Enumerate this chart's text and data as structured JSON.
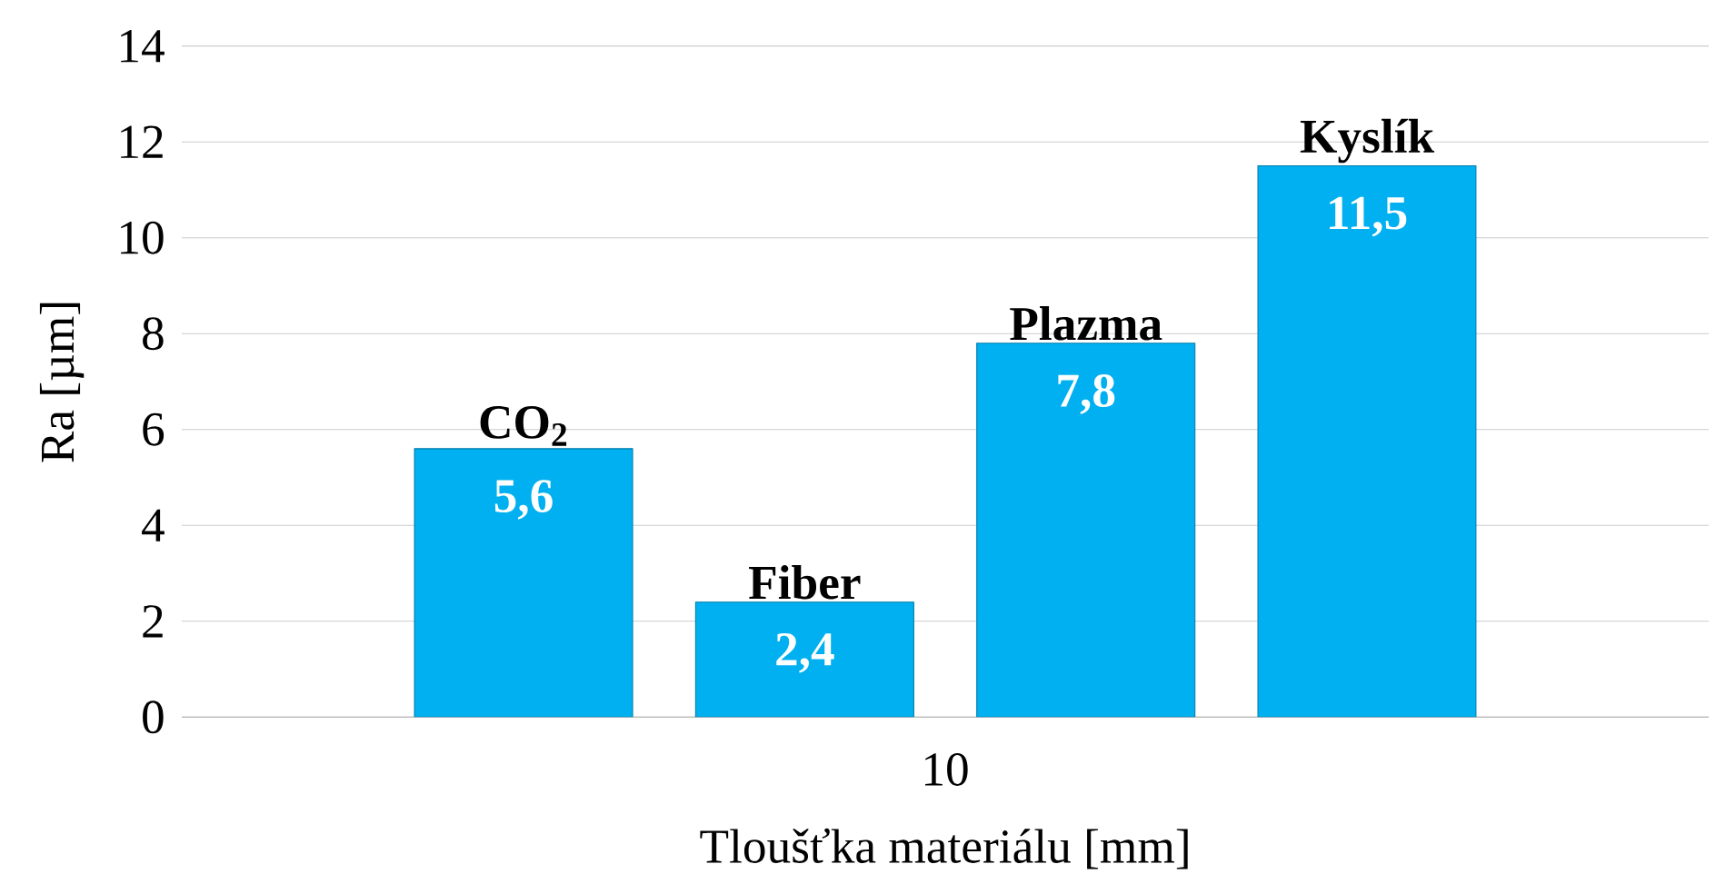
{
  "chart_data": {
    "type": "bar",
    "xlabel": "Tloušťka materiálu [mm]",
    "ylabel": "Ra [µm]",
    "categories": [
      "10"
    ],
    "series": [
      {
        "name": "CO$_{2}$",
        "color": "#00b0f0",
        "values": [
          5.6
        ],
        "value_labels": [
          "5,6"
        ]
      },
      {
        "name": "Fiber",
        "color": "#00b0f0",
        "values": [
          2.4
        ],
        "value_labels": [
          "2,4"
        ]
      },
      {
        "name": "Plazma",
        "color": "#00b0f0",
        "values": [
          7.8
        ],
        "value_labels": [
          "7,8"
        ]
      },
      {
        "name": "Kyslík",
        "color": "#00b0f0",
        "values": [
          11.5
        ],
        "value_labels": [
          "11,5"
        ]
      }
    ],
    "ylim": [
      0,
      14
    ],
    "yticks": [
      0,
      2,
      4,
      6,
      8,
      10,
      12,
      14
    ],
    "grid": "y"
  }
}
